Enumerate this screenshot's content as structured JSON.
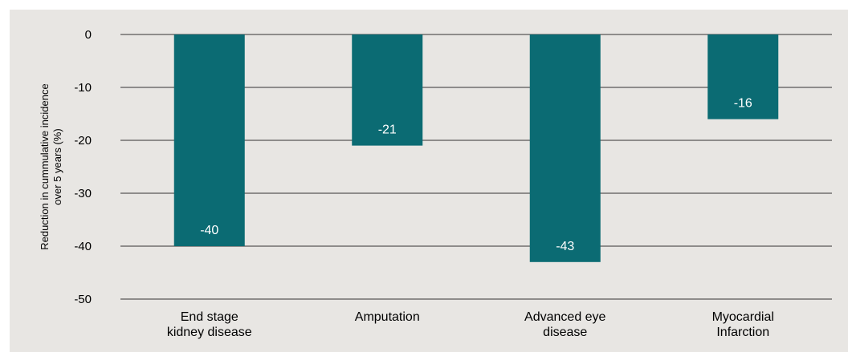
{
  "chart_data": {
    "type": "bar",
    "title": "",
    "categories": [
      "End stage\nkidney disease",
      "Amputation",
      "Advanced eye\ndisease",
      "Myocardial\nInfarction"
    ],
    "values": [
      -40,
      -21,
      -43,
      -16
    ],
    "data_labels": [
      "-40",
      "-21",
      "-43",
      "-16"
    ],
    "ylabel": [
      "Reduction in cummulative incidence",
      "over 5 years (%)"
    ],
    "ylim": [
      -50,
      0
    ],
    "yticks": [
      0,
      -10,
      -20,
      -30,
      -40,
      -50
    ],
    "ytick_labels": [
      "0",
      "-10",
      "-20",
      "-30",
      "-40",
      "-50"
    ],
    "grid": true,
    "colors": {
      "bar": "#0b6b73",
      "background": "#e8e6e3",
      "grid": "#333333"
    }
  }
}
